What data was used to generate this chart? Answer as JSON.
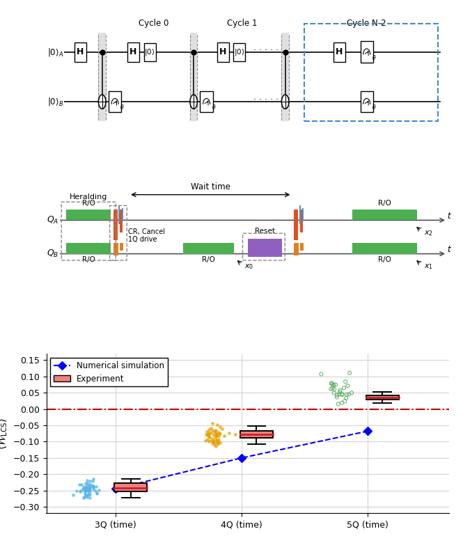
{
  "colors": {
    "green_ro": "#4caf50",
    "orange_pulse": "#e08020",
    "red_cr": "#e05020",
    "blue_iq": "#5090d0",
    "purple_reset": "#9060c0",
    "dashed_box_blue": "#4488cc",
    "gray_sep": "#aaaaaa"
  },
  "plot_data": {
    "x_positions": [
      0,
      1,
      2
    ],
    "x_labels": [
      "3Q (time)",
      "4Q (time)",
      "5Q (time)"
    ],
    "sim_values": [
      -0.245,
      -0.15,
      -0.068
    ],
    "exp_box_3q": {
      "q1": -0.252,
      "q3": -0.228,
      "median": -0.242,
      "whisker_low": -0.272,
      "whisker_high": -0.215
    },
    "exp_box_4q": {
      "q1": -0.088,
      "q3": -0.068,
      "median": -0.078,
      "whisker_low": -0.108,
      "whisker_high": -0.052
    },
    "exp_box_5q": {
      "q1": 0.03,
      "q3": 0.042,
      "median": 0.036,
      "whisker_low": 0.018,
      "whisker_high": 0.052
    },
    "scatter_3q_mean": -0.243,
    "scatter_3q_std": 0.015,
    "scatter_4q_mean": -0.083,
    "scatter_4q_std": 0.016,
    "scatter_5q_mean": 0.06,
    "scatter_5q_std": 0.022,
    "scatter_colors": [
      "#56b4e9",
      "#e69f00",
      "#57a85a"
    ],
    "zero_line_color": "#cc0000",
    "box_fill_color": "#f08080"
  }
}
